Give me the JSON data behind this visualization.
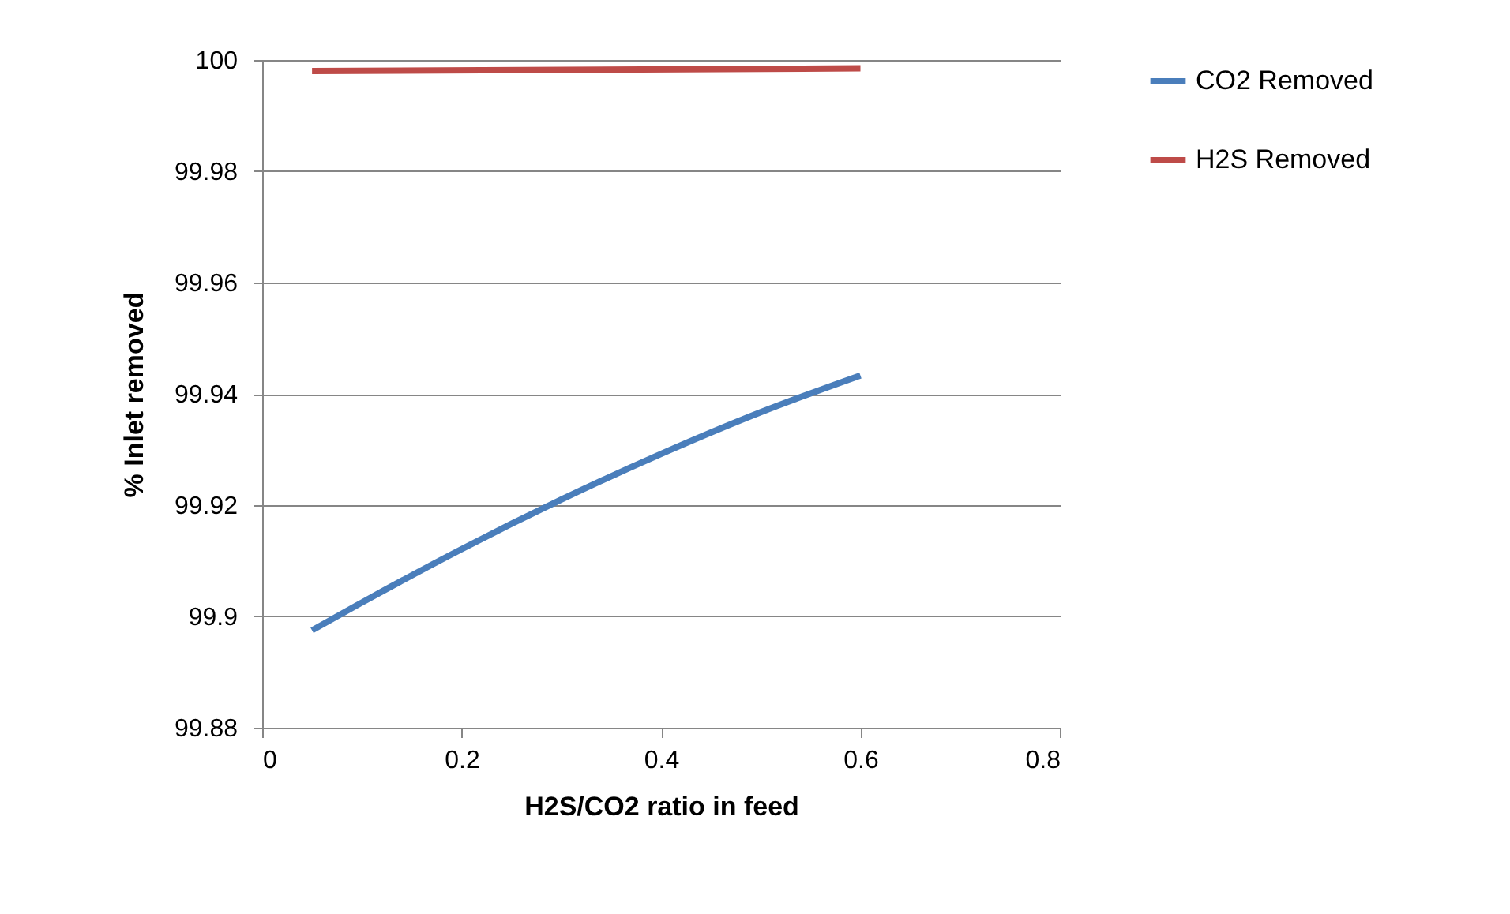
{
  "chart_data": {
    "type": "line",
    "xlabel": "H2S/CO2 ratio in feed",
    "ylabel": "% Inlet removed",
    "xlim": [
      0,
      0.8
    ],
    "xticks": [
      0,
      0.2,
      0.4,
      0.6,
      0.8
    ],
    "ylim": [
      99.88,
      100
    ],
    "yticks": [
      99.88,
      99.9,
      99.92,
      99.94,
      99.96,
      99.98,
      100
    ],
    "grid": "y",
    "legend": "right",
    "marker": "none",
    "line_style": "solid",
    "series": [
      {
        "name": "CO2 Removed",
        "color": "#4a7ebb",
        "x": [
          0.05,
          0.1,
          0.2,
          0.3,
          0.4,
          0.5,
          0.6
        ],
        "values": [
          99.8975,
          99.9025,
          99.9121,
          99.921,
          99.9292,
          99.9367,
          99.9433
        ]
      },
      {
        "name": "H2S Removed",
        "color": "#be4b48",
        "x": [
          0.05,
          0.6
        ],
        "values": [
          99.998,
          99.9985
        ]
      }
    ]
  }
}
